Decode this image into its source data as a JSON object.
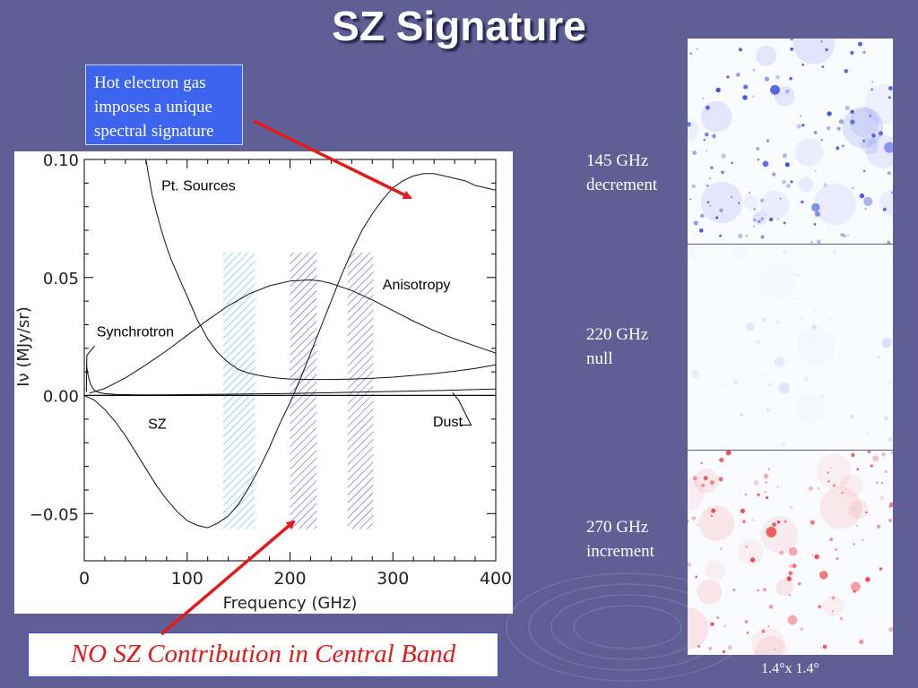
{
  "slide": {
    "title": "SZ Signature",
    "callout_lines": [
      "Hot electron gas",
      "imposes a unique",
      "spectral signature"
    ],
    "bottom_text": "NO SZ Contribution in Central Band",
    "scale_label": "1.4°x 1.4°"
  },
  "maps": [
    {
      "label_lines": [
        "145 GHz",
        "decrement"
      ],
      "color": "#1a2ee0"
    },
    {
      "label_lines": [
        "220 GHz",
        "null"
      ],
      "color": "#7a88e8"
    },
    {
      "label_lines": [
        "270 GHz",
        "increment"
      ],
      "color": "#e81a1a"
    }
  ],
  "colors": {
    "background": "#5f5f95",
    "callout_bg": "#3c64ef",
    "arrow": "#e41a1a",
    "band_1": "#4fc8c8",
    "band_2": "#7060c0",
    "band_3": "#8060c0"
  },
  "chart_data": {
    "type": "line",
    "xlabel": "Frequency (GHz)",
    "ylabel": "Iν (MJy/sr)",
    "xlim": [
      0,
      400
    ],
    "ylim": [
      -0.07,
      0.1
    ],
    "x_ticks": [
      0,
      100,
      200,
      300,
      400
    ],
    "y_ticks": [
      -0.05,
      0.0,
      0.05,
      0.1
    ],
    "y_tick_labels": [
      "−0.05",
      "0.00",
      "0.05",
      "0.10"
    ],
    "grid": false,
    "annotations": [
      {
        "text": "Pt. Sources",
        "x": 75,
        "y": 0.087
      },
      {
        "text": "Anisotropy",
        "x": 290,
        "y": 0.045
      },
      {
        "text": "Synchrotron",
        "x": 12,
        "y": 0.025
      },
      {
        "text": "SZ",
        "x": 62,
        "y": -0.014
      },
      {
        "text": "Dust",
        "x": 339,
        "y": -0.013
      }
    ],
    "bands": [
      {
        "from": 135,
        "to": 166,
        "color": "#4fc8c8"
      },
      {
        "from": 200,
        "to": 226,
        "color": "#7060c0"
      },
      {
        "from": 256,
        "to": 281,
        "color": "#8060c0"
      }
    ],
    "series": [
      {
        "name": "Pt. Sources",
        "x": [
          60,
          63,
          66,
          70,
          75,
          80,
          85,
          90,
          95,
          100,
          105,
          110,
          115,
          120,
          125,
          130,
          140,
          150,
          160,
          170,
          180,
          190,
          200,
          220,
          240,
          260,
          280,
          300,
          320,
          340,
          360,
          380,
          400
        ],
        "y": [
          0.1,
          0.092,
          0.085,
          0.078,
          0.07,
          0.063,
          0.057,
          0.052,
          0.047,
          0.042,
          0.037,
          0.032,
          0.028,
          0.024,
          0.021,
          0.018,
          0.014,
          0.011,
          0.0095,
          0.0085,
          0.0078,
          0.0073,
          0.007,
          0.0068,
          0.0068,
          0.007,
          0.0073,
          0.0078,
          0.0085,
          0.0093,
          0.0103,
          0.0115,
          0.013
        ]
      },
      {
        "name": "Anisotropy",
        "x": [
          5,
          20,
          40,
          60,
          80,
          100,
          120,
          140,
          160,
          180,
          200,
          220,
          230,
          240,
          260,
          280,
          300,
          320,
          340,
          360,
          380,
          400
        ],
        "y": [
          0.001,
          0.003,
          0.0075,
          0.013,
          0.019,
          0.0255,
          0.032,
          0.038,
          0.043,
          0.0465,
          0.0485,
          0.049,
          0.0485,
          0.0475,
          0.0445,
          0.0405,
          0.036,
          0.0315,
          0.0275,
          0.024,
          0.021,
          0.018
        ]
      },
      {
        "name": "Synchrotron",
        "x": [
          2,
          4,
          6,
          8,
          10,
          14,
          20,
          30,
          50,
          80,
          120,
          200,
          300,
          400
        ],
        "y": [
          0.013,
          0.008,
          0.005,
          0.0032,
          0.0022,
          0.0013,
          0.0008,
          0.0005,
          0.0003,
          0.0002,
          0.0001,
          0.0001,
          0.0001,
          0.0001
        ]
      },
      {
        "name": "SZ",
        "x": [
          0,
          10,
          20,
          30,
          40,
          50,
          60,
          70,
          80,
          90,
          100,
          110,
          120,
          130,
          140,
          150,
          160,
          170,
          180,
          190,
          200,
          210,
          220,
          230,
          240,
          250,
          260,
          270,
          280,
          290,
          300,
          310,
          320,
          330,
          340,
          350,
          360,
          370,
          380,
          390,
          400
        ],
        "y": [
          0.0,
          -0.002,
          -0.006,
          -0.011,
          -0.017,
          -0.024,
          -0.031,
          -0.038,
          -0.044,
          -0.049,
          -0.053,
          -0.055,
          -0.056,
          -0.054,
          -0.051,
          -0.046,
          -0.039,
          -0.031,
          -0.022,
          -0.012,
          -0.003,
          0.007,
          0.018,
          0.029,
          0.04,
          0.051,
          0.061,
          0.07,
          0.077,
          0.083,
          0.088,
          0.091,
          0.093,
          0.094,
          0.094,
          0.093,
          0.092,
          0.091,
          0.089,
          0.088,
          0.087
        ]
      },
      {
        "name": "Dust",
        "x": [
          0,
          50,
          100,
          150,
          200,
          250,
          300,
          350,
          400
        ],
        "y": [
          0.0001,
          0.0002,
          0.0004,
          0.0006,
          0.0009,
          0.0013,
          0.0017,
          0.0022,
          0.0028
        ]
      }
    ]
  }
}
